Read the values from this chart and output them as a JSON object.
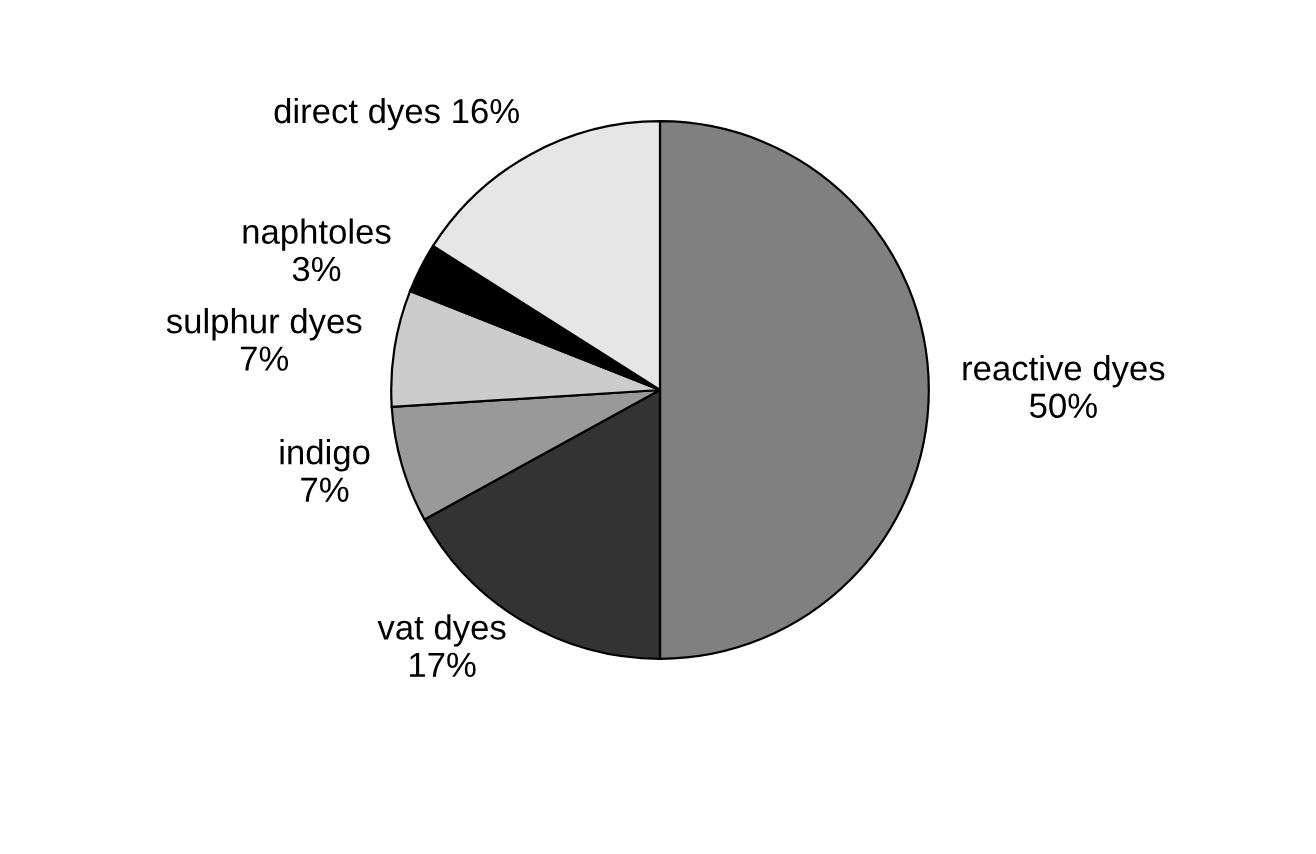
{
  "chart_data": {
    "type": "pie",
    "categories": [
      "reactive dyes",
      "vat dyes",
      "indigo",
      "sulphur dyes",
      "naphtoles",
      "direct dyes"
    ],
    "values": [
      50,
      17,
      7,
      7,
      3,
      16
    ],
    "value_labels": [
      "50%",
      "17%",
      "7%",
      "7%",
      "3%",
      "16%"
    ],
    "colors": [
      "#808080",
      "#333333",
      "#999999",
      "#cccccc",
      "#000000",
      "#e6e6e6"
    ],
    "legend": false
  }
}
